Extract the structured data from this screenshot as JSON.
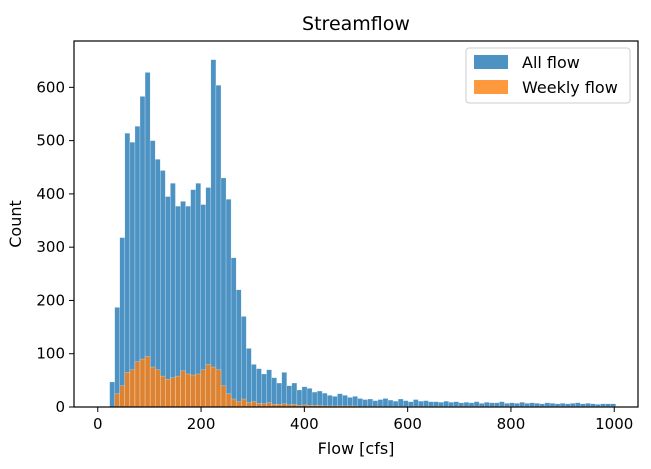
{
  "chart_data": {
    "type": "histogram",
    "title": "Streamflow",
    "xlabel": "Flow [cfs]",
    "ylabel": "Count",
    "xlim": [
      -46,
      1046
    ],
    "ylim": [
      0,
      687
    ],
    "xticks": [
      0,
      200,
      400,
      600,
      800,
      1000
    ],
    "yticks": [
      0,
      100,
      200,
      300,
      400,
      500,
      600
    ],
    "bin_start": 23,
    "bin_width": 9.8,
    "legend_position": "upper right",
    "grid": false,
    "series": [
      {
        "name": "All flow",
        "color": "#1f77b4",
        "opacity": 0.8,
        "values": [
          47,
          187,
          318,
          514,
          497,
          527,
          583,
          628,
          500,
          465,
          444,
          395,
          420,
          377,
          386,
          377,
          408,
          420,
          380,
          412,
          652,
          604,
          430,
          390,
          280,
          220,
          170,
          110,
          80,
          72,
          62,
          70,
          55,
          45,
          65,
          40,
          45,
          32,
          38,
          35,
          28,
          30,
          26,
          22,
          20,
          25,
          22,
          18,
          20,
          16,
          14,
          15,
          12,
          14,
          16,
          13,
          11,
          15,
          12,
          10,
          14,
          11,
          12,
          10,
          10,
          9,
          11,
          9,
          10,
          8,
          9,
          8,
          10,
          7,
          9,
          8,
          8,
          10,
          7,
          8,
          7,
          9,
          7,
          8,
          7,
          6,
          8,
          7,
          6,
          7,
          6,
          7,
          8,
          6,
          7,
          6,
          5,
          6,
          6,
          6
        ]
      },
      {
        "name": "Weekly flow",
        "color": "#ff7f0e",
        "opacity": 0.8,
        "values": [
          0,
          25,
          40,
          65,
          70,
          85,
          90,
          95,
          75,
          70,
          58,
          52,
          55,
          58,
          68,
          62,
          60,
          62,
          70,
          80,
          75,
          70,
          40,
          25,
          15,
          10,
          15,
          8,
          10,
          7,
          6,
          8,
          5,
          5,
          6,
          4,
          5,
          3,
          4,
          3,
          3,
          3,
          2,
          2,
          2,
          2,
          2,
          2,
          2,
          1,
          1,
          1,
          1,
          1,
          1,
          1,
          1,
          1,
          1,
          1,
          1,
          1,
          1,
          1,
          1,
          1,
          1,
          1,
          1,
          1,
          1,
          1,
          1,
          1,
          1,
          1,
          1,
          1,
          1,
          1,
          1,
          1,
          1,
          1,
          1,
          1,
          1,
          1,
          1,
          1,
          1,
          1,
          1,
          1,
          1,
          1,
          1,
          1,
          1,
          1
        ]
      }
    ]
  }
}
